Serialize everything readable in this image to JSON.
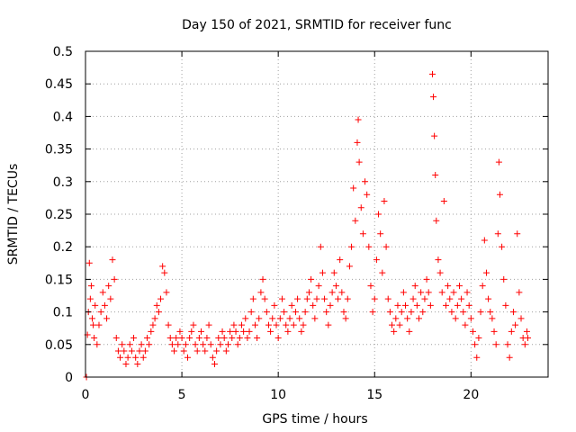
{
  "chart_data": {
    "type": "scatter",
    "title": "Day 150 of 2021, SRMTID for receiver func",
    "xlabel": "GPS time / hours",
    "ylabel": "SRMTID / TECUs",
    "xlim": [
      0,
      24
    ],
    "ylim": [
      0,
      0.5
    ],
    "x_ticks": [
      0,
      5,
      10,
      15,
      20
    ],
    "x_tick_labels": [
      "0",
      "5",
      "10",
      "15",
      "20"
    ],
    "y_ticks": [
      0,
      0.05,
      0.1,
      0.15,
      0.2,
      0.25,
      0.3,
      0.35,
      0.4,
      0.45,
      0.5
    ],
    "y_tick_labels": [
      "0",
      "0.05",
      "0.1",
      "0.15",
      "0.2",
      "0.25",
      "0.3",
      "0.35",
      "0.4",
      "0.45",
      "0.5"
    ],
    "grid": true,
    "marker": "plus",
    "color": "#ff0000",
    "series": [
      {
        "name": "SRMTID",
        "points": [
          [
            0.05,
            0.0
          ],
          [
            0.1,
            0.065
          ],
          [
            0.15,
            0.1
          ],
          [
            0.2,
            0.175
          ],
          [
            0.25,
            0.12
          ],
          [
            0.3,
            0.14
          ],
          [
            0.35,
            0.09
          ],
          [
            0.4,
            0.08
          ],
          [
            0.45,
            0.06
          ],
          [
            0.5,
            0.11
          ],
          [
            0.6,
            0.05
          ],
          [
            0.7,
            0.08
          ],
          [
            0.8,
            0.1
          ],
          [
            0.9,
            0.13
          ],
          [
            1.0,
            0.11
          ],
          [
            1.1,
            0.09
          ],
          [
            1.2,
            0.14
          ],
          [
            1.3,
            0.12
          ],
          [
            1.4,
            0.18
          ],
          [
            1.5,
            0.15
          ],
          [
            1.6,
            0.06
          ],
          [
            1.7,
            0.04
          ],
          [
            1.8,
            0.03
          ],
          [
            1.9,
            0.05
          ],
          [
            2.0,
            0.04
          ],
          [
            2.1,
            0.02
          ],
          [
            2.2,
            0.03
          ],
          [
            2.3,
            0.05
          ],
          [
            2.4,
            0.04
          ],
          [
            2.5,
            0.06
          ],
          [
            2.6,
            0.03
          ],
          [
            2.7,
            0.02
          ],
          [
            2.8,
            0.04
          ],
          [
            2.9,
            0.05
          ],
          [
            3.0,
            0.03
          ],
          [
            3.1,
            0.04
          ],
          [
            3.2,
            0.06
          ],
          [
            3.3,
            0.05
          ],
          [
            3.4,
            0.07
          ],
          [
            3.5,
            0.08
          ],
          [
            3.6,
            0.09
          ],
          [
            3.7,
            0.11
          ],
          [
            3.8,
            0.1
          ],
          [
            3.9,
            0.12
          ],
          [
            4.0,
            0.17
          ],
          [
            4.1,
            0.16
          ],
          [
            4.2,
            0.13
          ],
          [
            4.3,
            0.08
          ],
          [
            4.4,
            0.06
          ],
          [
            4.5,
            0.05
          ],
          [
            4.6,
            0.04
          ],
          [
            4.7,
            0.06
          ],
          [
            4.8,
            0.05
          ],
          [
            4.9,
            0.07
          ],
          [
            5.0,
            0.06
          ],
          [
            5.1,
            0.04
          ],
          [
            5.2,
            0.05
          ],
          [
            5.3,
            0.03
          ],
          [
            5.4,
            0.06
          ],
          [
            5.5,
            0.07
          ],
          [
            5.6,
            0.08
          ],
          [
            5.7,
            0.05
          ],
          [
            5.8,
            0.04
          ],
          [
            5.9,
            0.06
          ],
          [
            6.0,
            0.07
          ],
          [
            6.1,
            0.05
          ],
          [
            6.2,
            0.04
          ],
          [
            6.3,
            0.06
          ],
          [
            6.4,
            0.08
          ],
          [
            6.5,
            0.05
          ],
          [
            6.6,
            0.03
          ],
          [
            6.7,
            0.02
          ],
          [
            6.8,
            0.04
          ],
          [
            6.9,
            0.06
          ],
          [
            7.0,
            0.05
          ],
          [
            7.1,
            0.07
          ],
          [
            7.2,
            0.06
          ],
          [
            7.3,
            0.04
          ],
          [
            7.4,
            0.05
          ],
          [
            7.5,
            0.07
          ],
          [
            7.6,
            0.06
          ],
          [
            7.7,
            0.08
          ],
          [
            7.8,
            0.07
          ],
          [
            7.9,
            0.05
          ],
          [
            8.0,
            0.06
          ],
          [
            8.1,
            0.08
          ],
          [
            8.2,
            0.07
          ],
          [
            8.3,
            0.09
          ],
          [
            8.4,
            0.06
          ],
          [
            8.5,
            0.07
          ],
          [
            8.6,
            0.1
          ],
          [
            8.7,
            0.12
          ],
          [
            8.8,
            0.08
          ],
          [
            8.9,
            0.06
          ],
          [
            9.0,
            0.09
          ],
          [
            9.1,
            0.13
          ],
          [
            9.2,
            0.15
          ],
          [
            9.3,
            0.12
          ],
          [
            9.4,
            0.1
          ],
          [
            9.5,
            0.08
          ],
          [
            9.6,
            0.07
          ],
          [
            9.7,
            0.09
          ],
          [
            9.8,
            0.11
          ],
          [
            9.9,
            0.08
          ],
          [
            10.0,
            0.06
          ],
          [
            10.1,
            0.09
          ],
          [
            10.2,
            0.12
          ],
          [
            10.3,
            0.1
          ],
          [
            10.4,
            0.08
          ],
          [
            10.5,
            0.07
          ],
          [
            10.6,
            0.09
          ],
          [
            10.7,
            0.11
          ],
          [
            10.8,
            0.08
          ],
          [
            10.9,
            0.1
          ],
          [
            11.0,
            0.12
          ],
          [
            11.1,
            0.09
          ],
          [
            11.2,
            0.07
          ],
          [
            11.3,
            0.08
          ],
          [
            11.4,
            0.1
          ],
          [
            11.5,
            0.12
          ],
          [
            11.6,
            0.13
          ],
          [
            11.7,
            0.15
          ],
          [
            11.8,
            0.11
          ],
          [
            11.9,
            0.09
          ],
          [
            12.0,
            0.12
          ],
          [
            12.1,
            0.14
          ],
          [
            12.2,
            0.2
          ],
          [
            12.3,
            0.16
          ],
          [
            12.4,
            0.12
          ],
          [
            12.5,
            0.1
          ],
          [
            12.6,
            0.08
          ],
          [
            12.7,
            0.11
          ],
          [
            12.8,
            0.13
          ],
          [
            12.9,
            0.16
          ],
          [
            13.0,
            0.14
          ],
          [
            13.1,
            0.12
          ],
          [
            13.2,
            0.18
          ],
          [
            13.3,
            0.13
          ],
          [
            13.4,
            0.1
          ],
          [
            13.5,
            0.09
          ],
          [
            13.6,
            0.12
          ],
          [
            13.7,
            0.17
          ],
          [
            13.8,
            0.2
          ],
          [
            13.9,
            0.29
          ],
          [
            14.0,
            0.24
          ],
          [
            14.1,
            0.36
          ],
          [
            14.15,
            0.395
          ],
          [
            14.2,
            0.33
          ],
          [
            14.3,
            0.26
          ],
          [
            14.4,
            0.22
          ],
          [
            14.5,
            0.3
          ],
          [
            14.6,
            0.28
          ],
          [
            14.7,
            0.2
          ],
          [
            14.8,
            0.14
          ],
          [
            14.9,
            0.1
          ],
          [
            15.0,
            0.12
          ],
          [
            15.1,
            0.18
          ],
          [
            15.2,
            0.25
          ],
          [
            15.3,
            0.22
          ],
          [
            15.4,
            0.16
          ],
          [
            15.5,
            0.27
          ],
          [
            15.6,
            0.2
          ],
          [
            15.7,
            0.12
          ],
          [
            15.8,
            0.1
          ],
          [
            15.9,
            0.08
          ],
          [
            16.0,
            0.07
          ],
          [
            16.1,
            0.09
          ],
          [
            16.2,
            0.11
          ],
          [
            16.3,
            0.08
          ],
          [
            16.4,
            0.1
          ],
          [
            16.5,
            0.13
          ],
          [
            16.6,
            0.11
          ],
          [
            16.7,
            0.09
          ],
          [
            16.8,
            0.07
          ],
          [
            16.9,
            0.1
          ],
          [
            17.0,
            0.12
          ],
          [
            17.1,
            0.14
          ],
          [
            17.2,
            0.11
          ],
          [
            17.3,
            0.09
          ],
          [
            17.4,
            0.13
          ],
          [
            17.5,
            0.1
          ],
          [
            17.6,
            0.12
          ],
          [
            17.7,
            0.15
          ],
          [
            17.8,
            0.13
          ],
          [
            17.9,
            0.11
          ],
          [
            18.0,
            0.465
          ],
          [
            18.05,
            0.43
          ],
          [
            18.1,
            0.37
          ],
          [
            18.15,
            0.31
          ],
          [
            18.2,
            0.24
          ],
          [
            18.3,
            0.18
          ],
          [
            18.4,
            0.16
          ],
          [
            18.5,
            0.13
          ],
          [
            18.6,
            0.27
          ],
          [
            18.7,
            0.11
          ],
          [
            18.8,
            0.14
          ],
          [
            18.9,
            0.12
          ],
          [
            19.0,
            0.1
          ],
          [
            19.1,
            0.13
          ],
          [
            19.2,
            0.09
          ],
          [
            19.3,
            0.11
          ],
          [
            19.4,
            0.14
          ],
          [
            19.5,
            0.12
          ],
          [
            19.6,
            0.1
          ],
          [
            19.7,
            0.08
          ],
          [
            19.8,
            0.13
          ],
          [
            19.9,
            0.11
          ],
          [
            20.0,
            0.09
          ],
          [
            20.1,
            0.07
          ],
          [
            20.2,
            0.05
          ],
          [
            20.3,
            0.03
          ],
          [
            20.4,
            0.06
          ],
          [
            20.5,
            0.1
          ],
          [
            20.6,
            0.14
          ],
          [
            20.7,
            0.21
          ],
          [
            20.8,
            0.16
          ],
          [
            20.9,
            0.12
          ],
          [
            21.0,
            0.1
          ],
          [
            21.1,
            0.09
          ],
          [
            21.2,
            0.07
          ],
          [
            21.3,
            0.05
          ],
          [
            21.4,
            0.22
          ],
          [
            21.45,
            0.33
          ],
          [
            21.5,
            0.28
          ],
          [
            21.6,
            0.2
          ],
          [
            21.7,
            0.15
          ],
          [
            21.8,
            0.11
          ],
          [
            21.9,
            0.05
          ],
          [
            22.0,
            0.03
          ],
          [
            22.1,
            0.07
          ],
          [
            22.2,
            0.1
          ],
          [
            22.3,
            0.08
          ],
          [
            22.4,
            0.22
          ],
          [
            22.5,
            0.13
          ],
          [
            22.6,
            0.09
          ],
          [
            22.7,
            0.06
          ],
          [
            22.8,
            0.05
          ],
          [
            22.9,
            0.07
          ],
          [
            22.95,
            0.06
          ]
        ]
      }
    ]
  }
}
